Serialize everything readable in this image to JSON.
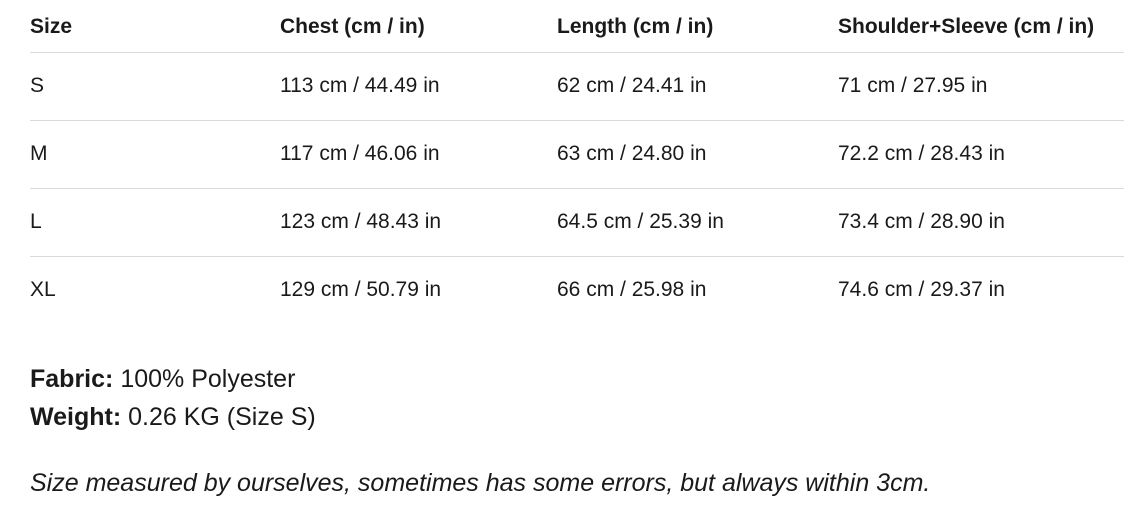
{
  "table": {
    "columns": [
      "Size",
      "Chest (cm / in)",
      "Length (cm / in)",
      "Shoulder+Sleeve (cm / in)"
    ],
    "rows": [
      {
        "size": "S",
        "chest": "113 cm / 44.49 in",
        "length": "62 cm / 24.41 in",
        "shoulder_sleeve": "71 cm / 27.95 in"
      },
      {
        "size": "M",
        "chest": "117 cm / 46.06 in",
        "length": "63 cm / 24.80 in",
        "shoulder_sleeve": "72.2 cm / 28.43 in"
      },
      {
        "size": "L",
        "chest": "123 cm / 48.43 in",
        "length": "64.5 cm / 25.39 in",
        "shoulder_sleeve": "73.4 cm / 28.90 in"
      },
      {
        "size": "XL",
        "chest": "129 cm / 50.79 in",
        "length": "66 cm / 25.98 in",
        "shoulder_sleeve": "74.6 cm / 29.37 in"
      }
    ]
  },
  "details": {
    "fabric_label": "Fabric:",
    "fabric_value": "100% Polyester",
    "weight_label": "Weight:",
    "weight_value": "0.26 KG (Size S)"
  },
  "note": "Size measured by ourselves, sometimes has some errors, but always within 3cm.",
  "colors": {
    "text": "#1a1a1a",
    "border": "#d9d9d9",
    "background": "#ffffff"
  }
}
